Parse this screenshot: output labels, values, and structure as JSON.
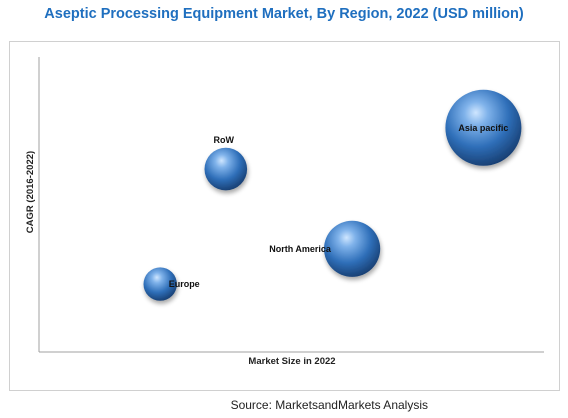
{
  "chart_data": {
    "type": "scatter",
    "title": "Aseptic Processing Equipment Market, By Region, 2022 (USD million)",
    "xlabel": "Market Size in 2022",
    "ylabel": "CAGR (2016-2022)",
    "grid": false,
    "axis_ticks": false,
    "bubble_color": "#2e6fb8",
    "points": [
      {
        "label": "Asia pacific",
        "x": 0.88,
        "y": 0.76,
        "size": 1.0
      },
      {
        "label": "RoW",
        "x": 0.37,
        "y": 0.62,
        "size": 0.56
      },
      {
        "label": "North America",
        "x": 0.62,
        "y": 0.35,
        "size": 0.74
      },
      {
        "label": "Europe",
        "x": 0.24,
        "y": 0.23,
        "size": 0.44
      }
    ]
  },
  "footer": {
    "source": "Source: MarketsandMarkets Analysis"
  }
}
